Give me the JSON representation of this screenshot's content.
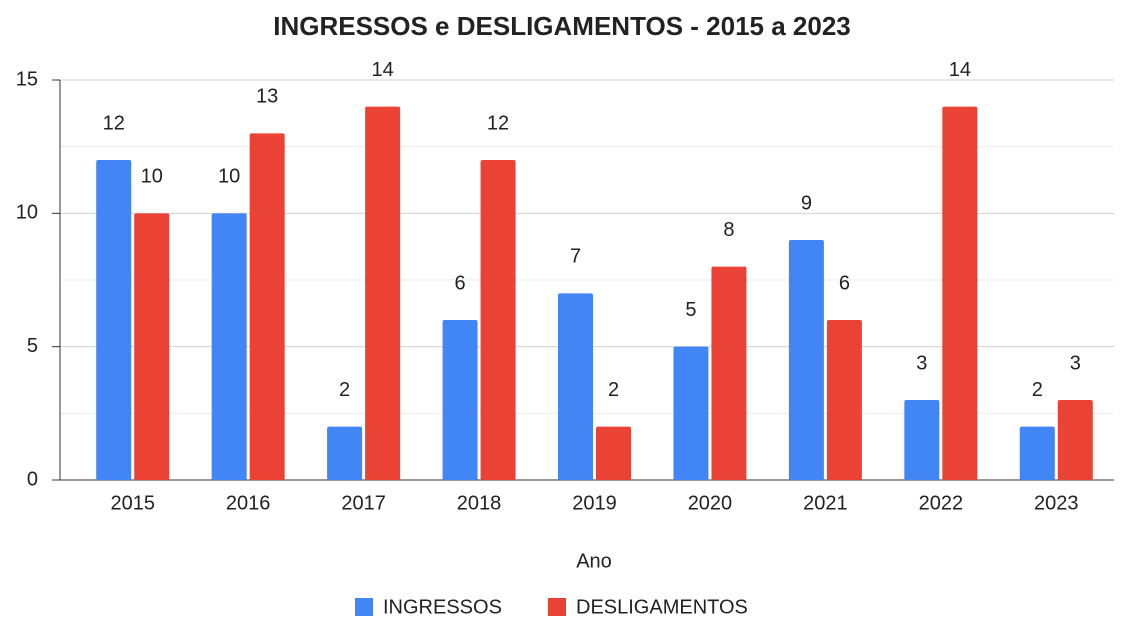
{
  "chart_data": {
    "type": "bar",
    "title": "INGRESSOS e DESLIGAMENTOS - 2015 a 2023",
    "x_label": "Ano",
    "categories": [
      "2015",
      "2016",
      "2017",
      "2018",
      "2019",
      "2020",
      "2021",
      "2022",
      "2023"
    ],
    "series": [
      {
        "name": "INGRESSOS",
        "color": "#4285f4",
        "values": [
          12,
          10,
          2,
          6,
          7,
          5,
          9,
          3,
          2
        ]
      },
      {
        "name": "DESLIGAMENTOS",
        "color": "#ea4335",
        "values": [
          10,
          13,
          14,
          12,
          2,
          8,
          6,
          14,
          3
        ]
      }
    ],
    "ylim": [
      0,
      15
    ],
    "yticks": [
      0,
      5,
      10,
      15
    ],
    "minor_yticks": [
      2.5,
      7.5,
      12.5
    ],
    "grid": true,
    "legend": "bottom"
  }
}
